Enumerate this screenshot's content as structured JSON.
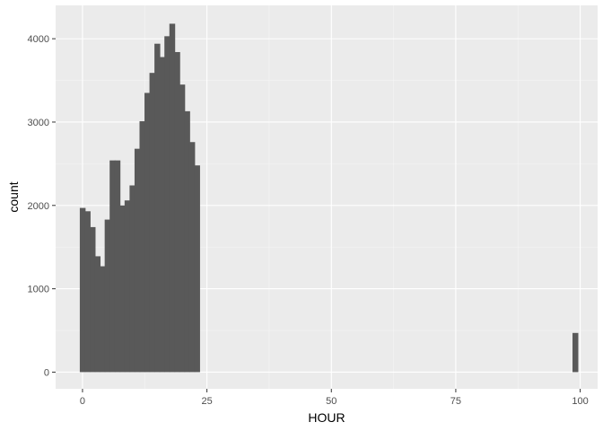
{
  "chart_data": {
    "type": "bar",
    "subtype": "histogram",
    "title": "",
    "xlabel": "HOUR",
    "ylabel": "count",
    "xlim": [
      -5.4,
      103.5
    ],
    "ylim": [
      -200,
      4400
    ],
    "x_ticks": [
      0,
      25,
      50,
      75,
      100
    ],
    "x_tick_labels": [
      "0",
      "25",
      "50",
      "75",
      "100"
    ],
    "y_ticks": [
      0,
      1000,
      2000,
      3000,
      4000
    ],
    "y_tick_labels": [
      "0",
      "1000",
      "2000",
      "3000",
      "4000"
    ],
    "bin_width": 1.09,
    "grid": true,
    "legend": "none",
    "bins": [
      {
        "x": 0,
        "count": 1970
      },
      {
        "x": 1,
        "count": 1930
      },
      {
        "x": 2,
        "count": 1740
      },
      {
        "x": 3,
        "count": 1390
      },
      {
        "x": 4,
        "count": 1270
      },
      {
        "x": 5,
        "count": 1830
      },
      {
        "x": 6,
        "count": 2540
      },
      {
        "x": 7,
        "count": 2540
      },
      {
        "x": 8,
        "count": 2000
      },
      {
        "x": 9,
        "count": 2060
      },
      {
        "x": 10,
        "count": 2240
      },
      {
        "x": 11,
        "count": 2680
      },
      {
        "x": 12,
        "count": 3010
      },
      {
        "x": 13,
        "count": 3350
      },
      {
        "x": 14,
        "count": 3590
      },
      {
        "x": 15,
        "count": 3940
      },
      {
        "x": 16,
        "count": 3780
      },
      {
        "x": 17,
        "count": 4030
      },
      {
        "x": 18,
        "count": 4180
      },
      {
        "x": 19,
        "count": 3840
      },
      {
        "x": 20,
        "count": 3450
      },
      {
        "x": 21,
        "count": 3130
      },
      {
        "x": 22,
        "count": 2760
      },
      {
        "x": 23,
        "count": 2480
      },
      {
        "x": 99,
        "count": 470
      }
    ],
    "colors": {
      "panel": "#EBEBEB",
      "grid_major": "#FFFFFF",
      "grid_minor": "#F5F5F5",
      "bar": "#595959",
      "tick_text": "#4D4D4D",
      "axis_title": "#000000",
      "tick_mark": "#333333"
    }
  }
}
